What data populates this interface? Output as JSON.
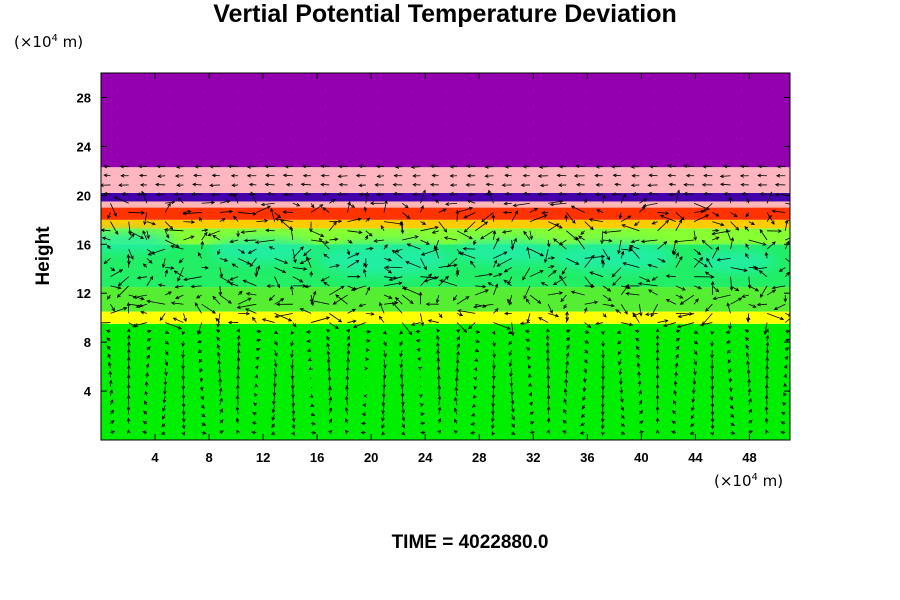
{
  "chart_data": {
    "type": "heatmap",
    "title": "Vertial Potential Temperature Deviation",
    "xlabel": "",
    "ylabel": "Height",
    "x_unit": {
      "prefix": "(×10",
      "exp": "4",
      "suffix": " m)"
    },
    "y_unit": {
      "prefix": "(×10",
      "exp": "4",
      "suffix": " m)"
    },
    "xlim": [
      0,
      51
    ],
    "ylim": [
      0,
      30
    ],
    "xticks": [
      4,
      8,
      12,
      16,
      20,
      24,
      28,
      32,
      36,
      40,
      44,
      48
    ],
    "yticks": [
      4,
      8,
      12,
      16,
      20,
      24,
      28
    ],
    "bands": [
      {
        "y0": 0,
        "y1": 9.5,
        "color": "#00ee00"
      },
      {
        "y0": 9.5,
        "y1": 10.5,
        "color": "#ffff00"
      },
      {
        "y0": 10.5,
        "y1": 12.5,
        "color": "#55ee33"
      },
      {
        "y0": 12.5,
        "y1": 16.0,
        "color": "#22ee66"
      },
      {
        "y0": 16.0,
        "y1": 17.3,
        "color": "#88ff33"
      },
      {
        "y0": 17.3,
        "y1": 18.0,
        "color": "#ffcc00"
      },
      {
        "y0": 18.0,
        "y1": 19.0,
        "color": "#ff3300"
      },
      {
        "y0": 19.0,
        "y1": 19.5,
        "color": "#ffb6b6"
      },
      {
        "y0": 19.5,
        "y1": 20.2,
        "color": "#4400aa"
      },
      {
        "y0": 20.2,
        "y1": 22.3,
        "color": "#ffb6c1"
      },
      {
        "y0": 22.3,
        "y1": 30,
        "color": "#9400b0"
      }
    ],
    "cyan_patches": [
      {
        "x": 2,
        "y": 16.2,
        "rx": 3.5,
        "ry": 0.8
      },
      {
        "x": 12,
        "y": 15.5,
        "rx": 4,
        "ry": 1.0
      },
      {
        "x": 21,
        "y": 14.8,
        "rx": 5,
        "ry": 1.4
      },
      {
        "x": 30,
        "y": 15.4,
        "rx": 4,
        "ry": 1.0
      },
      {
        "x": 38,
        "y": 15.0,
        "rx": 4.5,
        "ry": 1.2
      },
      {
        "x": 47,
        "y": 14.6,
        "rx": 3,
        "ry": 0.9
      }
    ],
    "vectors": "wind field arrows"
  },
  "time_label": "TIME = 4022880.0",
  "colors": {
    "axis": "#000000",
    "arrow": "#000000"
  }
}
